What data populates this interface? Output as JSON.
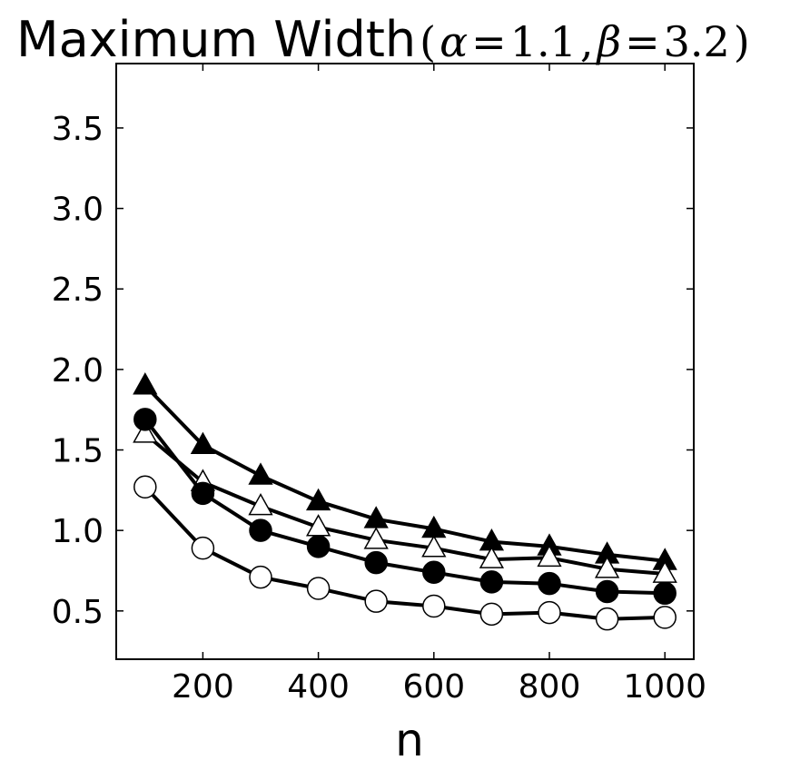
{
  "chart_data": {
    "type": "line",
    "title": "Maximum Width",
    "title_params": {
      "open": "(",
      "alpha_symbol": "α",
      "eq1": "=",
      "alpha_value": "1.1",
      "comma": ",",
      "beta_symbol": "β",
      "eq2": "=",
      "beta_value": "3.2",
      "close": ")"
    },
    "xlabel": "n",
    "ylabel": "",
    "xlim": [
      50,
      1050
    ],
    "ylim": [
      0.2,
      3.9
    ],
    "x_ticks": [
      200,
      400,
      600,
      800,
      1000
    ],
    "x_tick_labels": [
      "200",
      "400",
      "600",
      "800",
      "1000"
    ],
    "y_ticks": [
      0.5,
      1.0,
      1.5,
      2.0,
      2.5,
      3.0,
      3.5
    ],
    "y_tick_labels": [
      "0.5",
      "1.0",
      "1.5",
      "2.0",
      "2.5",
      "3.0",
      "3.5"
    ],
    "grid": false,
    "x": [
      100,
      200,
      300,
      400,
      500,
      600,
      700,
      800,
      900,
      1000
    ],
    "series": [
      {
        "marker": "triangle-filled",
        "values": [
          1.9,
          1.53,
          1.34,
          1.18,
          1.07,
          1.01,
          0.93,
          0.9,
          0.85,
          0.81
        ]
      },
      {
        "marker": "triangle-open",
        "values": [
          1.6,
          1.3,
          1.15,
          1.02,
          0.94,
          0.89,
          0.82,
          0.83,
          0.76,
          0.73
        ]
      },
      {
        "marker": "circle-filled",
        "values": [
          1.69,
          1.23,
          1.0,
          0.9,
          0.8,
          0.74,
          0.68,
          0.67,
          0.62,
          0.61
        ]
      },
      {
        "marker": "circle-open",
        "values": [
          1.27,
          0.89,
          0.71,
          0.64,
          0.56,
          0.53,
          0.48,
          0.49,
          0.45,
          0.46
        ]
      }
    ],
    "line_color": "#000000",
    "marker_fill_filled": "#000000",
    "marker_fill_open": "#ffffff"
  }
}
